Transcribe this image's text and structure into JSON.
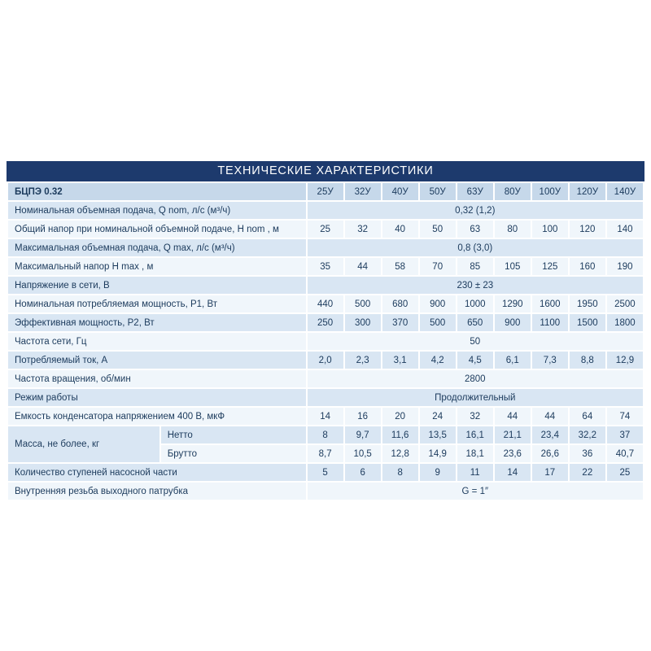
{
  "title": "ТЕХНИЧЕСКИЕ ХАРАКТЕРИСТИКИ",
  "table": {
    "model": "БЦПЭ 0.32",
    "columns": [
      "25У",
      "32У",
      "40У",
      "50У",
      "63У",
      "80У",
      "100У",
      "120У",
      "140У"
    ],
    "rows": [
      {
        "label": "Номинальная объемная подача, Q nom, л/с (м³/ч)",
        "span": "0,32 (1,2)"
      },
      {
        "label": "Общий напор при номинальной объемной подаче, H nom , м",
        "values": [
          "25",
          "32",
          "40",
          "50",
          "63",
          "80",
          "100",
          "120",
          "140"
        ]
      },
      {
        "label": "Максимальная объемная подача, Q max, л/с (м³/ч)",
        "span": "0,8 (3,0)"
      },
      {
        "label": "Максимальный напор H max , м",
        "values": [
          "35",
          "44",
          "58",
          "70",
          "85",
          "105",
          "125",
          "160",
          "190"
        ]
      },
      {
        "label": "Напряжение в сети, В",
        "span": "230 ± 23"
      },
      {
        "label": "Номинальная потребляемая мощность, P1,  Вт",
        "values": [
          "440",
          "500",
          "680",
          "900",
          "1000",
          "1290",
          "1600",
          "1950",
          "2500"
        ]
      },
      {
        "label": "Эффективная  мощность, P2, Вт",
        "values": [
          "250",
          "300",
          "370",
          "500",
          "650",
          "900",
          "1100",
          "1500",
          "1800"
        ]
      },
      {
        "label": "Частота сети, Гц",
        "span": "50"
      },
      {
        "label": "Потребляемый ток, А",
        "values": [
          "2,0",
          "2,3",
          "3,1",
          "4,2",
          "4,5",
          "6,1",
          "7,3",
          "8,8",
          "12,9"
        ]
      },
      {
        "label": "Частота вращения, об/мин",
        "span": "2800"
      },
      {
        "label": "Режим работы",
        "span": "Продолжительный"
      },
      {
        "label": "Емкость конденсатора напряжением 400 В, мкФ",
        "values": [
          "14",
          "16",
          "20",
          "24",
          "32",
          "44",
          "44",
          "64",
          "74"
        ]
      },
      {
        "label": "Масса, не более, кг",
        "sub": [
          {
            "label": "Нетто",
            "values": [
              "8",
              "9,7",
              "11,6",
              "13,5",
              "16,1",
              "21,1",
              "23,4",
              "32,2",
              "37"
            ]
          },
          {
            "label": "Брутто",
            "values": [
              "8,7",
              "10,5",
              "12,8",
              "14,9",
              "18,1",
              "23,6",
              "26,6",
              "36",
              "40,7"
            ]
          }
        ]
      },
      {
        "label": "Количество ступеней насосной части",
        "values": [
          "5",
          "6",
          "8",
          "9",
          "11",
          "14",
          "17",
          "22",
          "25"
        ]
      },
      {
        "label": "Внутренняя резьба выходного патрубка",
        "span": "G = 1″"
      }
    ]
  }
}
